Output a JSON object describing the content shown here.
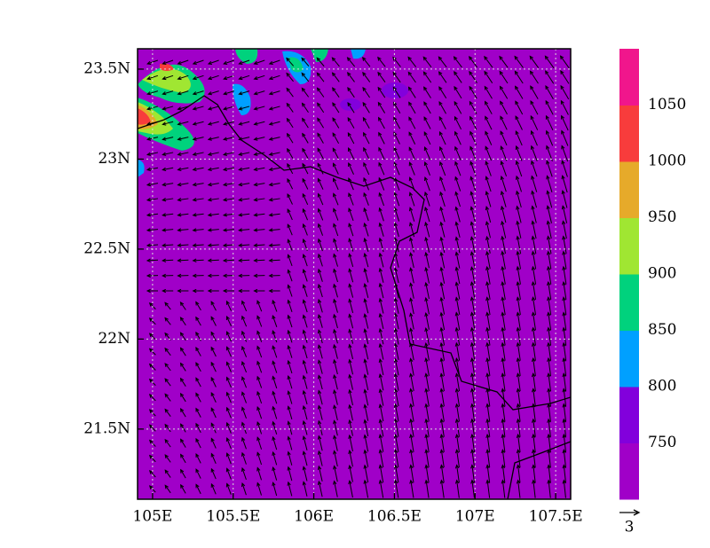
{
  "map": {
    "xlim": [
      104.907,
      107.593
    ],
    "ylim": [
      21.11,
      23.613
    ],
    "xticks": [
      {
        "value": 105,
        "label": "105E"
      },
      {
        "value": 105.5,
        "label": "105.5E"
      },
      {
        "value": 106,
        "label": "106E"
      },
      {
        "value": 106.5,
        "label": "106.5E"
      },
      {
        "value": 107,
        "label": "107E"
      },
      {
        "value": 107.5,
        "label": "107.5E"
      }
    ],
    "yticks": [
      {
        "value": 21.5,
        "label": "21.5N"
      },
      {
        "value": 22,
        "label": "22N"
      },
      {
        "value": 22.5,
        "label": "22.5N"
      },
      {
        "value": 23,
        "label": "23N"
      },
      {
        "value": 23.5,
        "label": "23.5N"
      }
    ],
    "grid": true,
    "background_color": "#a000c8"
  },
  "colorbar": {
    "levels": [
      750,
      800,
      850,
      900,
      950,
      1000,
      1050
    ],
    "colors": [
      "#a000c8",
      "#8200dc",
      "#00a0ff",
      "#00d27d",
      "#a0e632",
      "#e6aa2a",
      "#f83c3c",
      "#f0168c"
    ]
  },
  "vector_reference": {
    "label": "3"
  }
}
